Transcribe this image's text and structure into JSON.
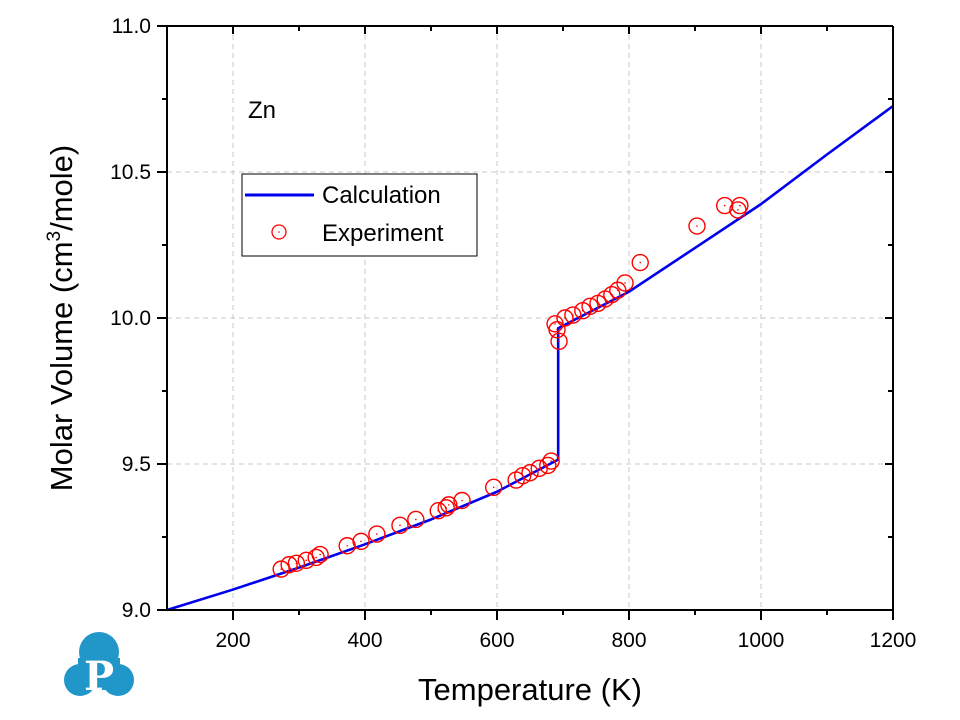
{
  "chart_data": {
    "type": "line",
    "title": "",
    "annotation": "Zn",
    "xlabel": "Temperature (K)",
    "ylabel": "Molar Volume (cm³/mole)",
    "ylabel_parts": {
      "before": "Molar Volume (cm",
      "sup": "3",
      "after": "/mole)"
    },
    "xlim": [
      100,
      1200
    ],
    "ylim": [
      9.0,
      11.0
    ],
    "xticks": [
      200,
      400,
      600,
      800,
      1000,
      1200
    ],
    "xtick_labels": [
      "200",
      "400",
      "600",
      "800",
      "1000",
      "1200"
    ],
    "xminor": [
      300,
      500,
      700,
      900,
      1100
    ],
    "yticks": [
      9.0,
      9.5,
      10.0,
      10.5,
      11.0
    ],
    "ytick_labels": [
      "9.0",
      "9.5",
      "10.0",
      "10.5",
      "11.0"
    ],
    "yminor": [
      9.25,
      9.75,
      10.25,
      10.75
    ],
    "grid": true,
    "legend_position": "upper-left",
    "series": [
      {
        "name": "Calculation",
        "kind": "line",
        "color": "#0000ee",
        "x": [
          100,
          200,
          300,
          400,
          500,
          600,
          692.7,
          692.7,
          800,
          900,
          1000,
          1100,
          1200
        ],
        "y": [
          9.0,
          9.07,
          9.145,
          9.225,
          9.31,
          9.405,
          9.515,
          9.965,
          10.09,
          10.24,
          10.39,
          10.56,
          10.726
        ]
      },
      {
        "name": "Experiment",
        "kind": "scatter",
        "marker": "circle-dot",
        "color": "#ff0000",
        "x": [
          273,
          285,
          296,
          311,
          326,
          332,
          373,
          394,
          418,
          453,
          477,
          511,
          523,
          527,
          547,
          595,
          629,
          639,
          650,
          664,
          677,
          682,
          688,
          691,
          694,
          703,
          715,
          730,
          741,
          753,
          764,
          774,
          783,
          794,
          817,
          903,
          945,
          965,
          968
        ],
        "y": [
          9.14,
          9.155,
          9.16,
          9.17,
          9.18,
          9.19,
          9.22,
          9.235,
          9.26,
          9.29,
          9.31,
          9.34,
          9.35,
          9.36,
          9.375,
          9.42,
          9.445,
          9.46,
          9.47,
          9.485,
          9.495,
          9.51,
          9.98,
          9.96,
          9.92,
          10.0,
          10.01,
          10.025,
          10.04,
          10.05,
          10.065,
          10.08,
          10.095,
          10.12,
          10.19,
          10.315,
          10.385,
          10.37,
          10.385
        ]
      }
    ]
  },
  "logo": {
    "letter": "P",
    "color": "#2196c8"
  }
}
